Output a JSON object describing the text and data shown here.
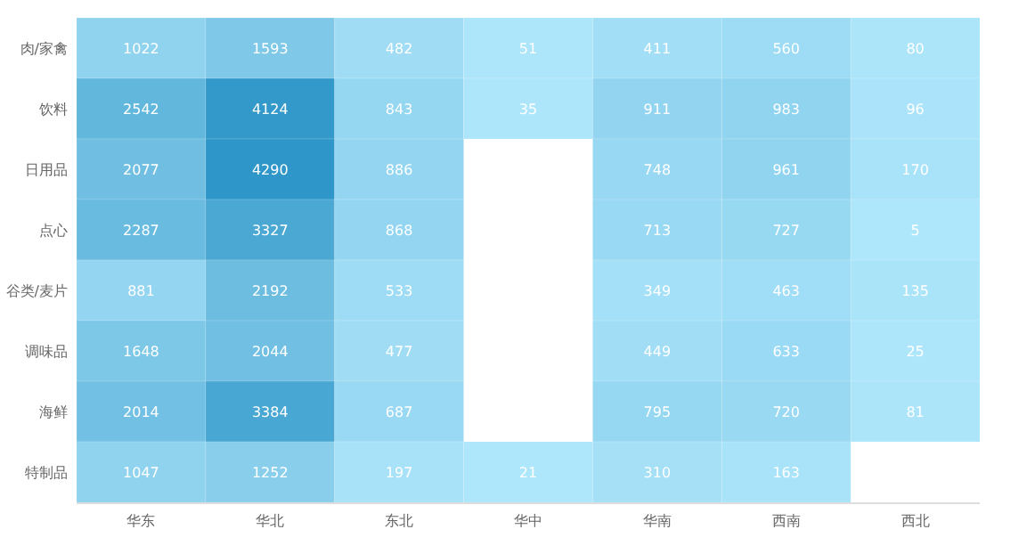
{
  "chart_data": {
    "type": "heatmap",
    "categories": [
      "华东",
      "华北",
      "东北",
      "华中",
      "华南",
      "西南",
      "西北"
    ],
    "y_categories": [
      "肉/家禽",
      "饮料",
      "日用品",
      "点心",
      "谷类/麦片",
      "调味品",
      "海鲜",
      "特制品"
    ],
    "cells": [
      [
        1022,
        1593,
        482,
        51,
        411,
        560,
        80
      ],
      [
        2542,
        4124,
        843,
        35,
        911,
        983,
        96
      ],
      [
        2077,
        4290,
        886,
        null,
        748,
        961,
        170
      ],
      [
        2287,
        3327,
        868,
        null,
        713,
        727,
        5
      ],
      [
        881,
        2192,
        533,
        null,
        349,
        463,
        135
      ],
      [
        1648,
        2044,
        477,
        null,
        449,
        633,
        25
      ],
      [
        2014,
        3384,
        687,
        null,
        795,
        720,
        81
      ],
      [
        1047,
        1252,
        197,
        21,
        310,
        163,
        null
      ]
    ],
    "data_labels": true
  }
}
